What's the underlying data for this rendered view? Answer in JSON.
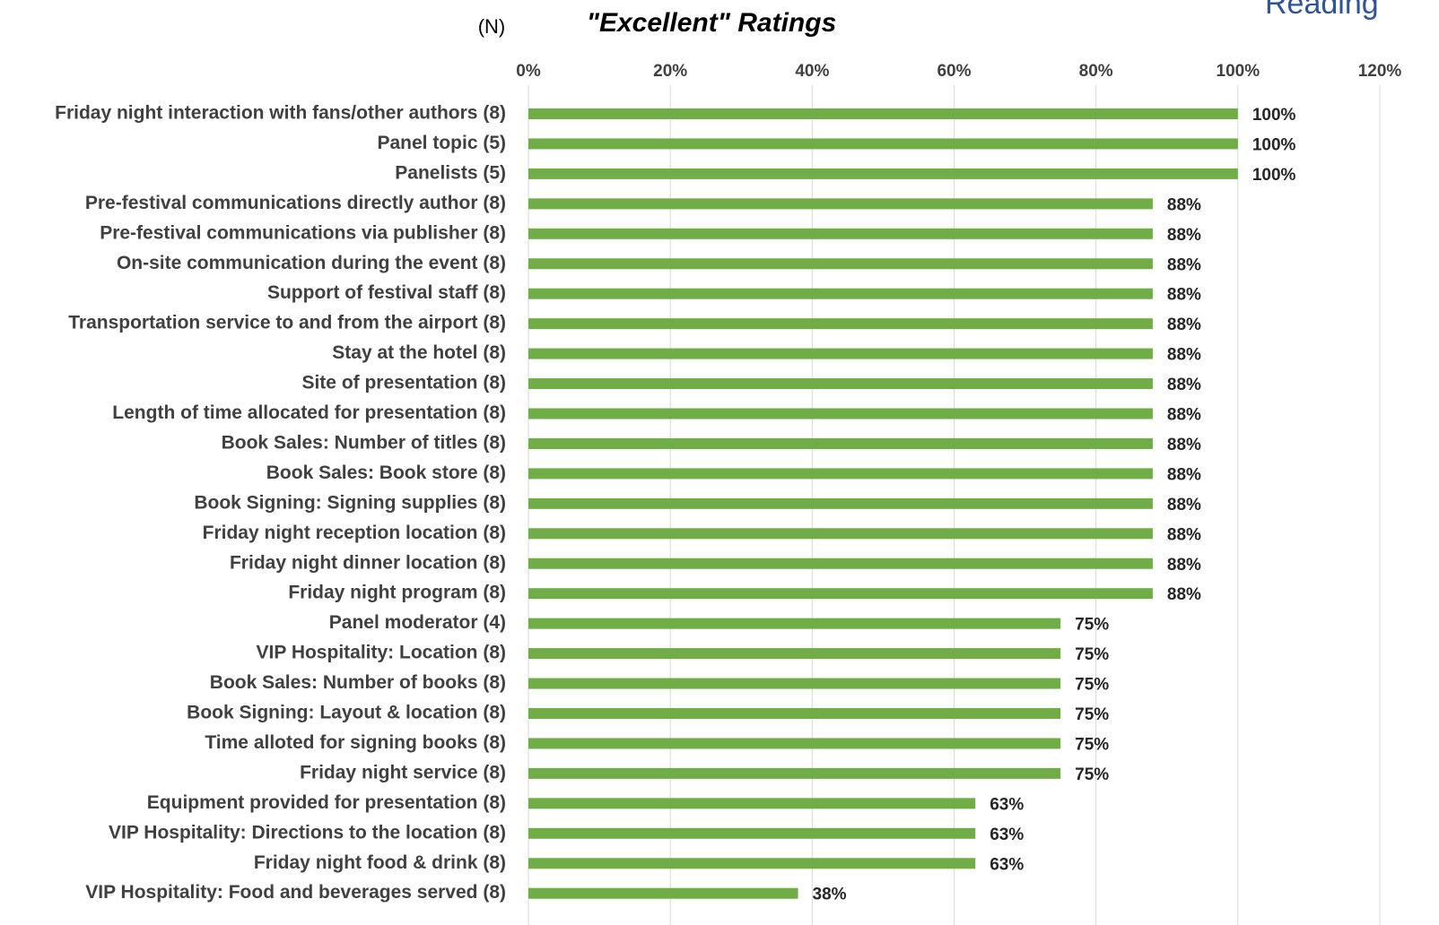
{
  "logo": "Reading",
  "chart_data": {
    "type": "bar",
    "orientation": "horizontal",
    "title": "\"Excellent\" Ratings",
    "subtitle": "(N)",
    "categories": [
      "Friday night interaction with fans/other authors (8)",
      "Panel topic (5)",
      "Panelists (5)",
      "Pre-festival communications directly author (8)",
      "Pre-festival communications via publisher (8)",
      "On-site communication during the event (8)",
      "Support of festival staff (8)",
      "Transportation service to and from the airport (8)",
      "Stay at the hotel (8)",
      "Site of presentation (8)",
      "Length of time allocated for presentation (8)",
      "Book Sales: Number of titles (8)",
      "Book Sales: Book store (8)",
      "Book Signing: Signing supplies (8)",
      "Friday night reception location (8)",
      "Friday night dinner location (8)",
      "Friday night program (8)",
      "Panel moderator (4)",
      "VIP Hospitality: Location (8)",
      "Book Sales: Number of books (8)",
      "Book Signing: Layout & location (8)",
      "Time alloted for signing books (8)",
      "Friday night service (8)",
      "Equipment provided for presentation (8)",
      "VIP Hospitality: Directions to the location (8)",
      "Friday night food & drink (8)",
      "VIP Hospitality: Food and beverages served (8)"
    ],
    "values": [
      100,
      100,
      100,
      88,
      88,
      88,
      88,
      88,
      88,
      88,
      88,
      88,
      88,
      88,
      88,
      88,
      88,
      75,
      75,
      75,
      75,
      75,
      75,
      63,
      63,
      63,
      38
    ],
    "value_labels": [
      "100%",
      "100%",
      "100%",
      "88%",
      "88%",
      "88%",
      "88%",
      "88%",
      "88%",
      "88%",
      "88%",
      "88%",
      "88%",
      "88%",
      "88%",
      "88%",
      "88%",
      "75%",
      "75%",
      "75%",
      "75%",
      "75%",
      "75%",
      "63%",
      "63%",
      "63%",
      "38%"
    ],
    "color": "#70ad47",
    "xlim": [
      0,
      120
    ],
    "xticks": [
      {
        "value": 0,
        "label": "0%"
      },
      {
        "value": 20,
        "label": "20%"
      },
      {
        "value": 40,
        "label": "40%"
      },
      {
        "value": 60,
        "label": "60%"
      },
      {
        "value": 80,
        "label": "80%"
      },
      {
        "value": 100,
        "label": "100%"
      },
      {
        "value": 120,
        "label": "120%"
      }
    ],
    "grid": true
  }
}
